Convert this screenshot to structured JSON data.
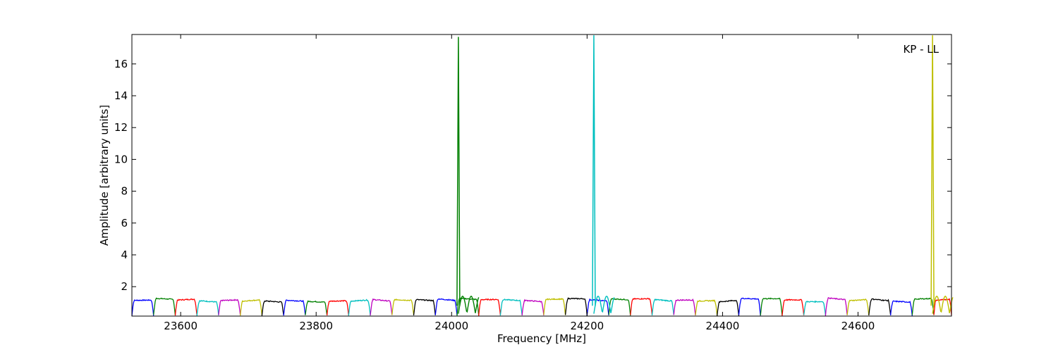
{
  "chart_data": {
    "type": "line",
    "xlabel": "Frequency [MHz]",
    "ylabel": "Amplitude [arbitrary units]",
    "annotation": "KP - LL",
    "xlim": [
      23528,
      24738
    ],
    "ylim": [
      0.15,
      17.85
    ],
    "xticks": [
      23600,
      23800,
      24000,
      24200,
      24400,
      24600
    ],
    "xtick_labels": [
      "23600",
      "23800",
      "24000",
      "24200",
      "24400",
      "24600"
    ],
    "yticks": [
      2,
      4,
      6,
      8,
      10,
      12,
      14,
      16
    ],
    "ytick_labels": [
      "2",
      "4",
      "6",
      "8",
      "10",
      "12",
      "14",
      "16"
    ],
    "grid": false,
    "color_cycle": [
      "#0000ff",
      "#008000",
      "#ff0000",
      "#00bfbf",
      "#bf00bf",
      "#bfbf00",
      "#000000"
    ],
    "bands": {
      "count": 38,
      "start_mhz": 23528,
      "width_mhz": 32,
      "typical_amplitude": 1.15,
      "edge_minimum": 0.2
    },
    "series": [
      {
        "color": "#008000",
        "spike_x": 24010,
        "spike_y": 17.7
      },
      {
        "color": "#00bfbf",
        "spike_x": 24210,
        "spike_y": 17.8
      },
      {
        "color": "#bfbf00",
        "spike_x": 24710,
        "spike_y": 17.8
      }
    ]
  }
}
